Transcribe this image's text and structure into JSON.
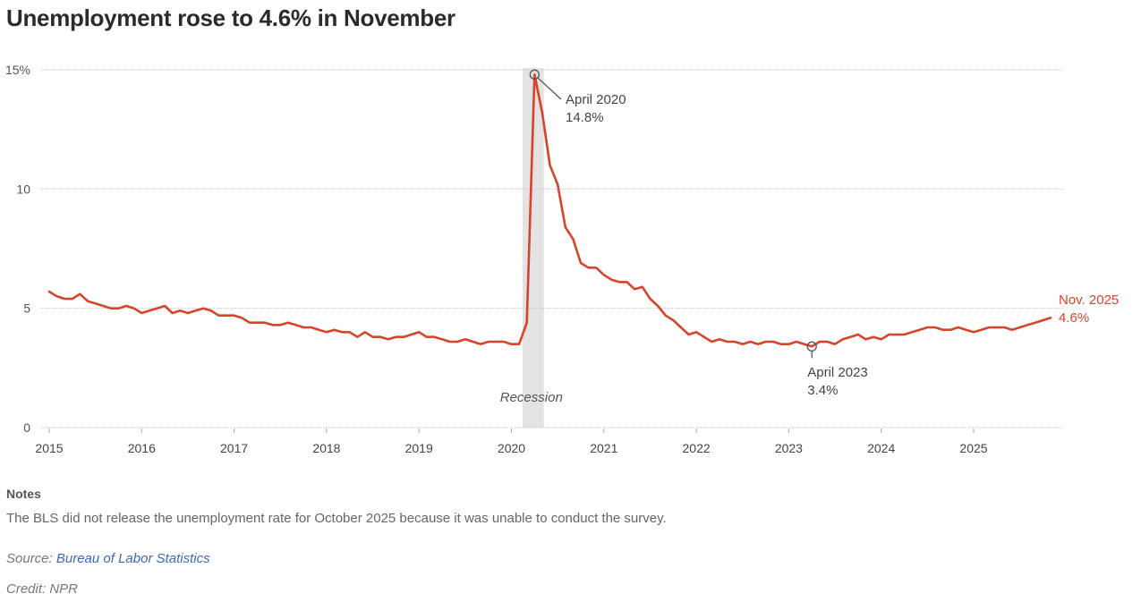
{
  "title": "Unemployment rose to 4.6% in November",
  "chart_data": {
    "type": "line",
    "title": "Unemployment rose to 4.6% in November",
    "xlabel": "",
    "ylabel": "",
    "ylim": [
      0,
      15
    ],
    "xlim": [
      2015.0,
      2025.96
    ],
    "grid": true,
    "y_ticks": [
      0,
      5,
      10,
      15
    ],
    "y_tick_labels": [
      "0",
      "5",
      "10",
      "15%"
    ],
    "x_ticks": [
      2015,
      2016,
      2017,
      2018,
      2019,
      2020,
      2021,
      2022,
      2023,
      2024,
      2025
    ],
    "x_tick_labels": [
      "2015",
      "2016",
      "2017",
      "2018",
      "2019",
      "2020",
      "2021",
      "2022",
      "2023",
      "2024",
      "2025"
    ],
    "line_color": "#d6452b",
    "recession": {
      "start": 2020.12,
      "end": 2020.35,
      "label": "Recession",
      "color": "#e3e3e3"
    },
    "series": [
      {
        "name": "Unemployment rate",
        "start_year": 2015,
        "frequency": "monthly",
        "missing_note": "October 2025 not released",
        "values": [
          5.7,
          5.5,
          5.4,
          5.4,
          5.6,
          5.3,
          5.2,
          5.1,
          5.0,
          5.0,
          5.1,
          5.0,
          4.8,
          4.9,
          5.0,
          5.1,
          4.8,
          4.9,
          4.8,
          4.9,
          5.0,
          4.9,
          4.7,
          4.7,
          4.7,
          4.6,
          4.4,
          4.4,
          4.4,
          4.3,
          4.3,
          4.4,
          4.3,
          4.2,
          4.2,
          4.1,
          4.0,
          4.1,
          4.0,
          4.0,
          3.8,
          4.0,
          3.8,
          3.8,
          3.7,
          3.8,
          3.8,
          3.9,
          4.0,
          3.8,
          3.8,
          3.7,
          3.6,
          3.6,
          3.7,
          3.6,
          3.5,
          3.6,
          3.6,
          3.6,
          3.5,
          3.5,
          4.4,
          14.8,
          13.2,
          11.0,
          10.2,
          8.4,
          7.9,
          6.9,
          6.7,
          6.7,
          6.4,
          6.2,
          6.1,
          6.1,
          5.8,
          5.9,
          5.4,
          5.1,
          4.7,
          4.5,
          4.2,
          3.9,
          4.0,
          3.8,
          3.6,
          3.7,
          3.6,
          3.6,
          3.5,
          3.6,
          3.5,
          3.6,
          3.6,
          3.5,
          3.5,
          3.6,
          3.5,
          3.4,
          3.6,
          3.6,
          3.5,
          3.7,
          3.8,
          3.9,
          3.7,
          3.8,
          3.7,
          3.9,
          3.9,
          3.9,
          4.0,
          4.1,
          4.2,
          4.2,
          4.1,
          4.1,
          4.2,
          4.1,
          4.0,
          4.1,
          4.2,
          4.2,
          4.2,
          4.1,
          4.2,
          4.3,
          4.4,
          null,
          4.6
        ]
      }
    ],
    "annotations": [
      {
        "label": "April 2020",
        "value_label": "14.8%",
        "x": 2020.25,
        "y": 14.8
      },
      {
        "label": "April 2023",
        "value_label": "3.4%",
        "x": 2023.25,
        "y": 3.4
      },
      {
        "label": "Nov. 2025",
        "value_label": "4.6%",
        "x": 2025.83,
        "y": 4.6
      }
    ]
  },
  "notes": {
    "heading": "Notes",
    "body": "The BLS did not release the unemployment rate for October 2025 because it was unable to conduct the survey."
  },
  "source": {
    "prefix": "Source: ",
    "link_text": "Bureau of Labor Statistics",
    "link_color": "#3b69b4"
  },
  "credit": "Credit: NPR"
}
